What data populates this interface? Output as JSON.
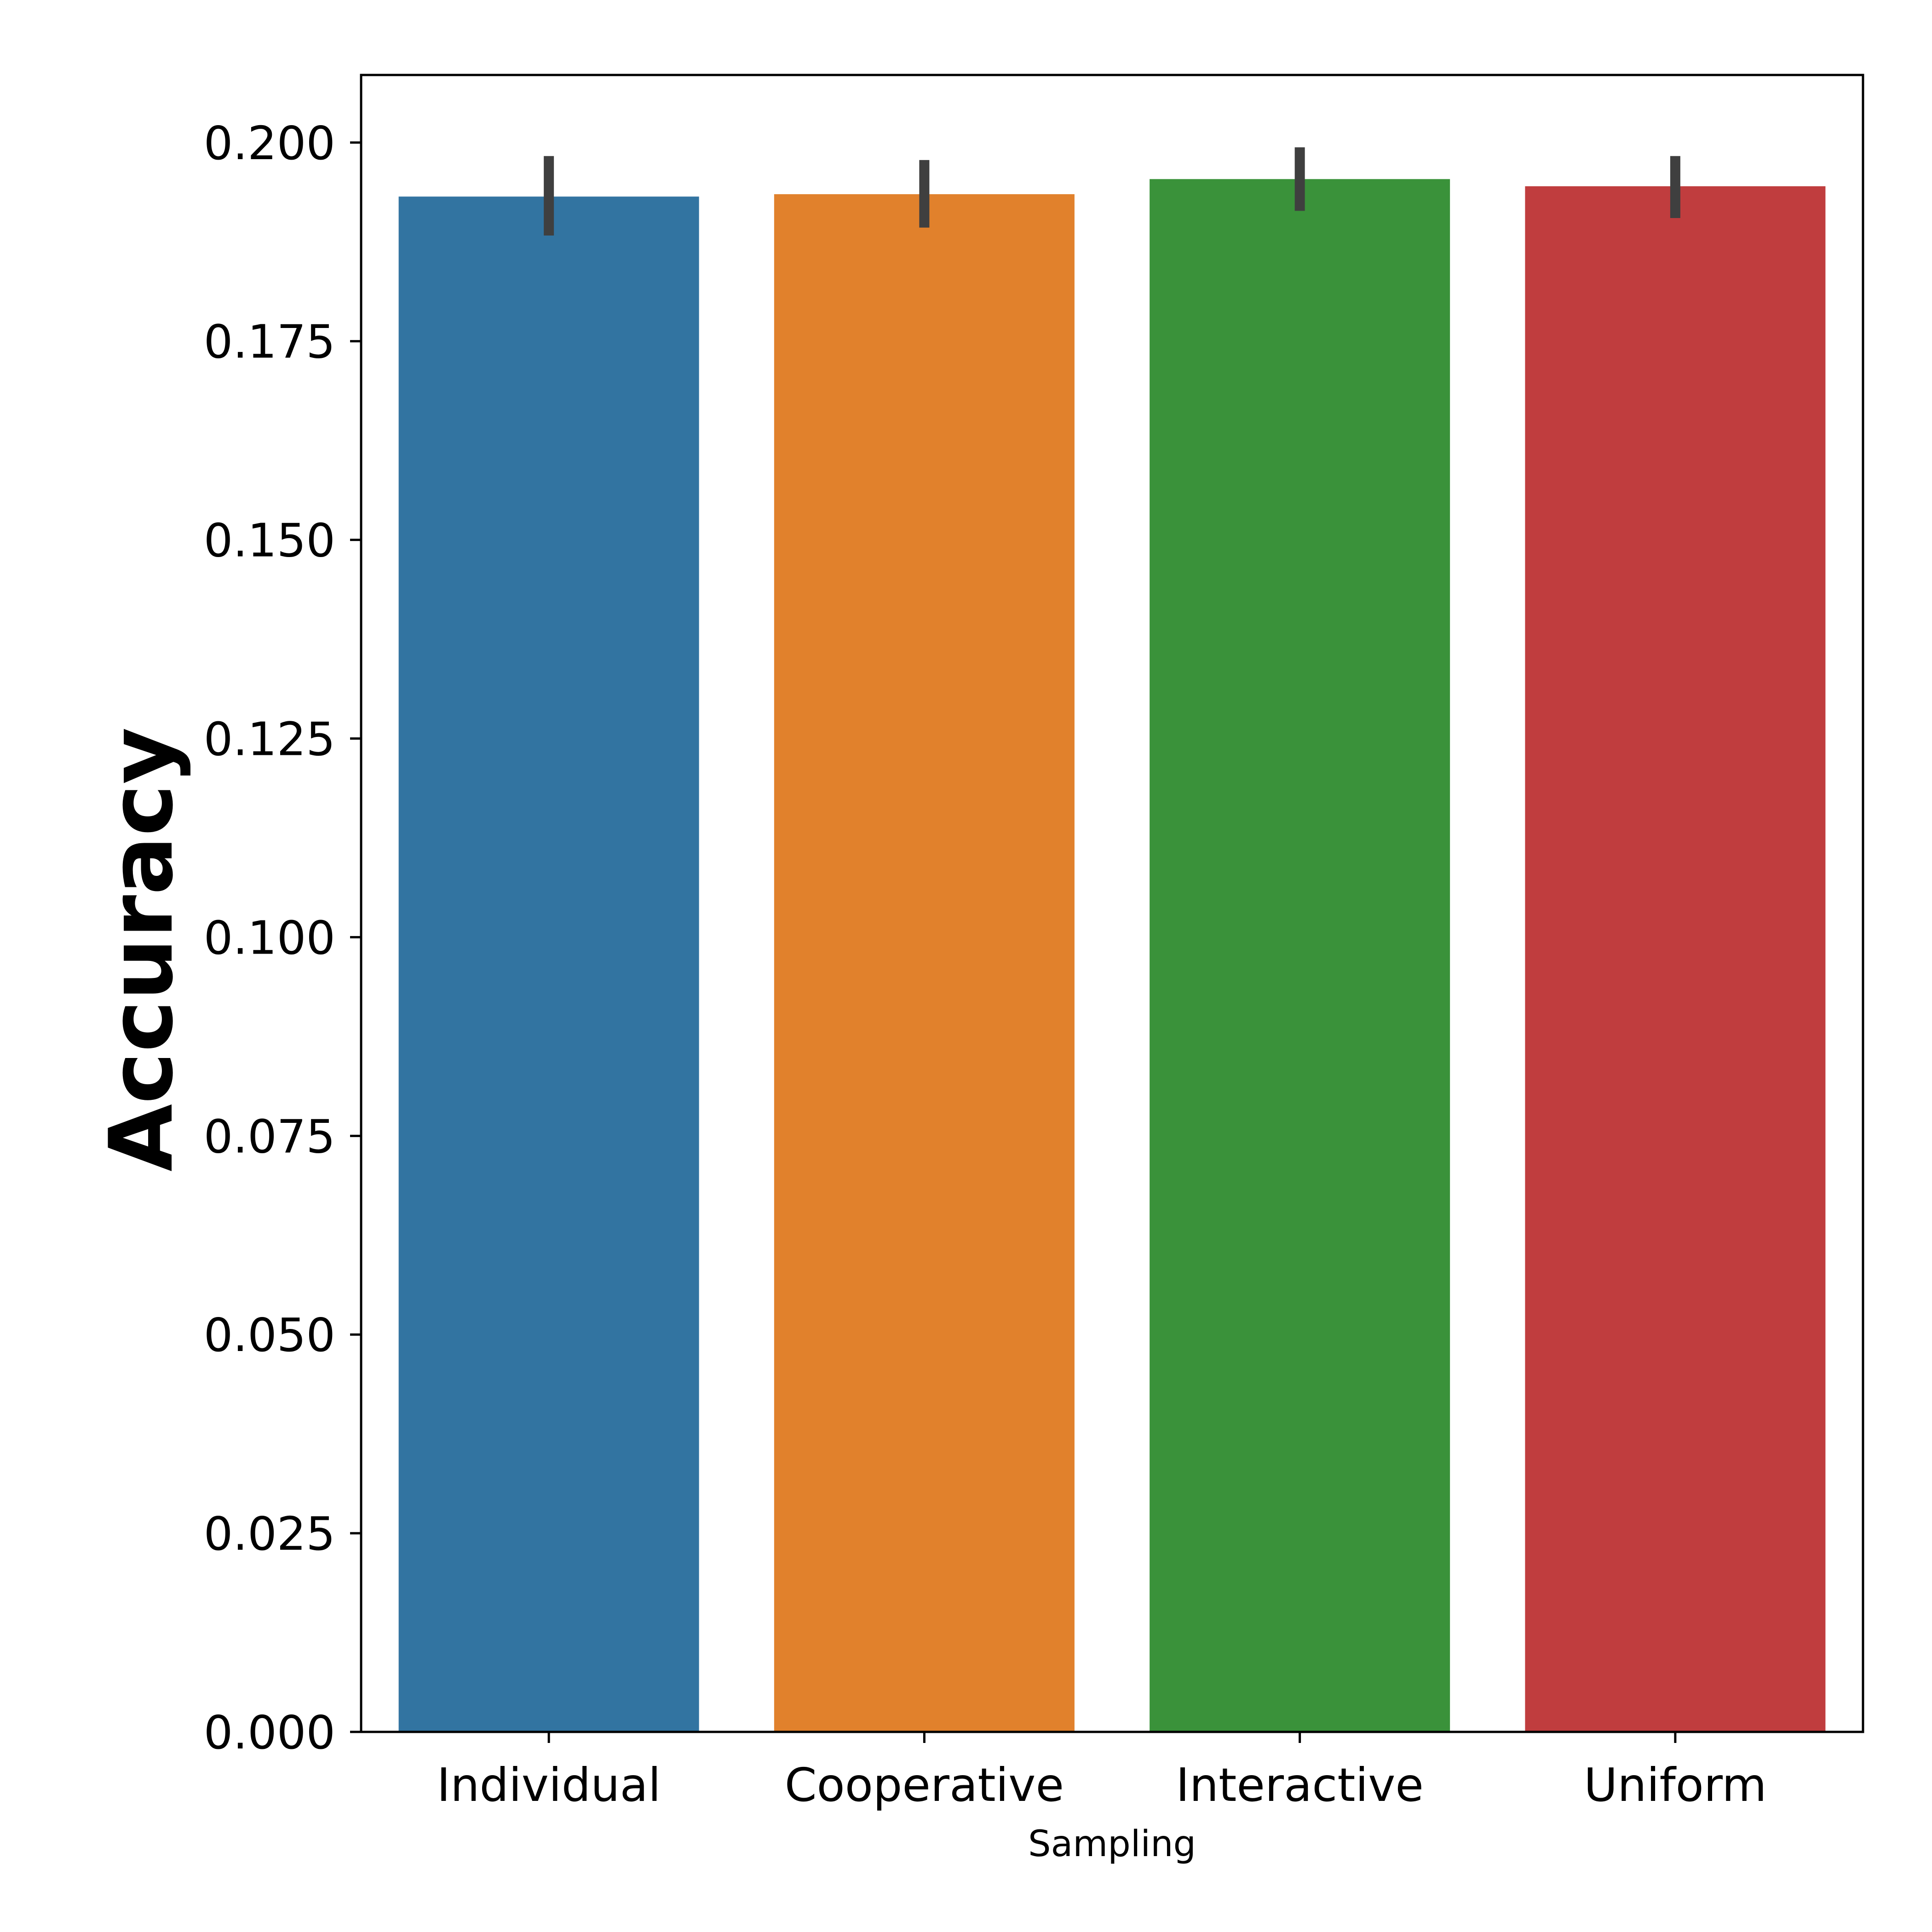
{
  "chart_data": {
    "type": "bar",
    "categories": [
      "Individual",
      "Cooperative",
      "Interactive",
      "Uniform"
    ],
    "values": [
      0.1932,
      0.1935,
      0.1954,
      0.1945
    ],
    "error_low": [
      0.1883,
      0.1893,
      0.1914,
      0.1905
    ],
    "error_high": [
      0.1983,
      0.1978,
      0.1994,
      0.1983
    ],
    "colors": [
      "#3274a1",
      "#e1812c",
      "#3a923a",
      "#c03d3e"
    ],
    "error_color": "#3f3f3f",
    "xlabel": "Sampling",
    "ylabel": "Accuracy",
    "ylim": [
      0,
      0.2085
    ],
    "yticks": [
      0.0,
      0.025,
      0.05,
      0.075,
      0.1,
      0.125,
      0.15,
      0.175,
      0.2
    ],
    "ytick_labels": [
      "0.000",
      "0.025",
      "0.050",
      "0.075",
      "0.100",
      "0.125",
      "0.150",
      "0.175",
      "0.200"
    ],
    "grid": false,
    "legend": "none"
  }
}
